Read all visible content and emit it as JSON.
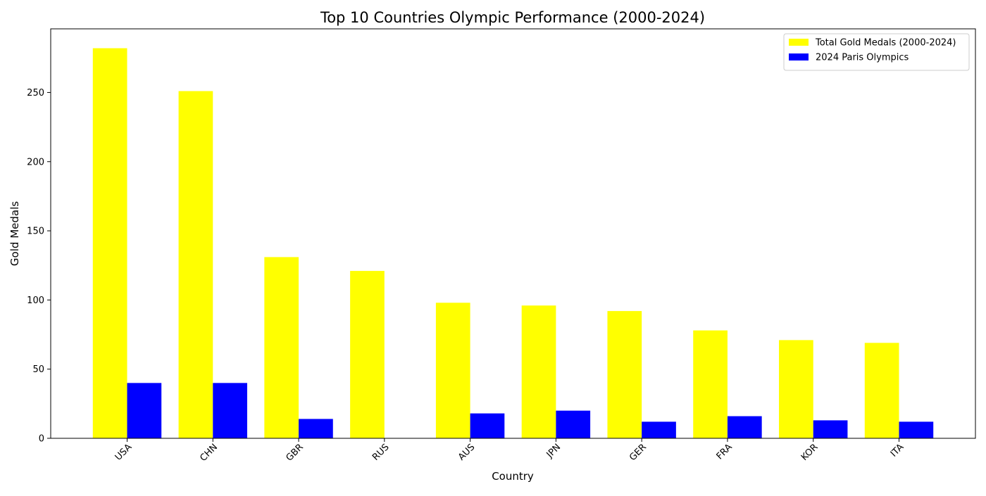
{
  "chart_data": {
    "type": "bar",
    "title": "Top 10 Countries Olympic Performance (2000-2024)",
    "xlabel": "Country",
    "ylabel": "Gold Medals",
    "categories": [
      "USA",
      "CHN",
      "GBR",
      "RUS",
      "AUS",
      "JPN",
      "GER",
      "FRA",
      "KOR",
      "ITA"
    ],
    "series": [
      {
        "name": "Total Gold Medals (2000-2024)",
        "color": "#ffff00",
        "values": [
          282,
          251,
          131,
          121,
          98,
          96,
          92,
          78,
          71,
          69
        ]
      },
      {
        "name": "2024 Paris Olympics",
        "color": "#0000ff",
        "values": [
          40,
          40,
          14,
          0,
          18,
          20,
          12,
          16,
          13,
          12
        ]
      }
    ],
    "ylim": [
      0,
      296
    ],
    "yticks": [
      0,
      50,
      100,
      150,
      200,
      250
    ],
    "grid": false,
    "legend_position": "top-right",
    "xtick_rotation": 45
  }
}
